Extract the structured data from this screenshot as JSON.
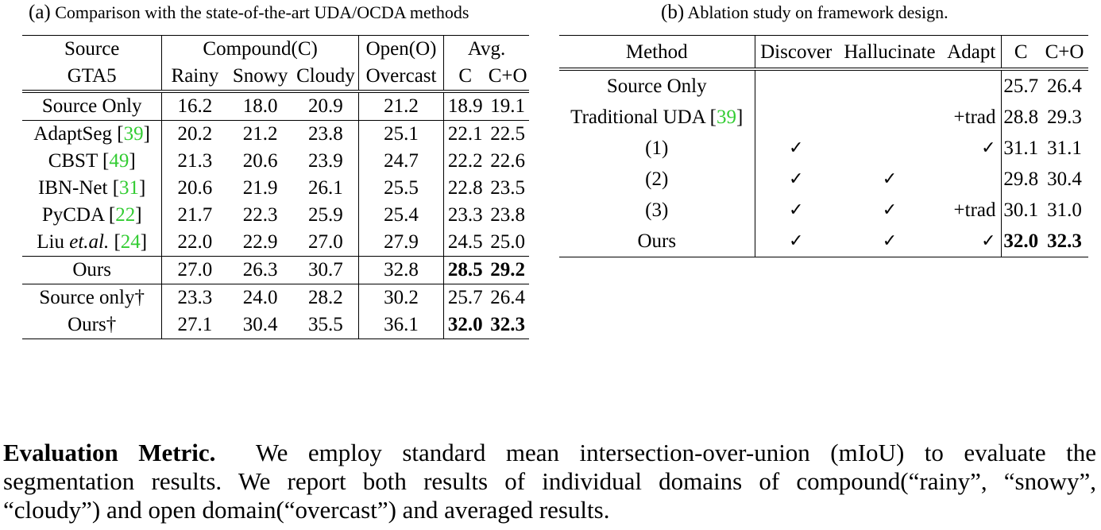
{
  "table_a": {
    "caption_label": "(a)",
    "caption_text": "Comparison with the state-of-the-art UDA/OCDA methods",
    "header": {
      "source": "Source",
      "dataset": "GTA5",
      "compound": "Compound(C)",
      "open": "Open(O)",
      "avg": "Avg.",
      "rainy": "Rainy",
      "snowy": "Snowy",
      "cloudy": "Cloudy",
      "overcast": "Overcast",
      "c": "C",
      "co": "C+O"
    },
    "rows": [
      {
        "method": "Source Only",
        "cite": "",
        "rainy": "16.2",
        "snowy": "18.0",
        "cloudy": "20.9",
        "overcast": "21.2",
        "c": "18.9",
        "co": "19.1"
      },
      {
        "method": "AdaptSeg",
        "cite": "39",
        "rainy": "20.2",
        "snowy": "21.2",
        "cloudy": "23.8",
        "overcast": "25.1",
        "c": "22.1",
        "co": "22.5"
      },
      {
        "method": "CBST",
        "cite": "49",
        "rainy": "21.3",
        "snowy": "20.6",
        "cloudy": "23.9",
        "overcast": "24.7",
        "c": "22.2",
        "co": "22.6"
      },
      {
        "method": "IBN-Net",
        "cite": "31",
        "rainy": "20.6",
        "snowy": "21.9",
        "cloudy": "26.1",
        "overcast": "25.5",
        "c": "22.8",
        "co": "23.5"
      },
      {
        "method": "PyCDA",
        "cite": "22",
        "rainy": "21.7",
        "snowy": "22.3",
        "cloudy": "25.9",
        "overcast": "25.4",
        "c": "23.3",
        "co": "23.8"
      },
      {
        "method_prefix": "Liu",
        "method_italic": "et.al.",
        "cite": "24",
        "rainy": "22.0",
        "snowy": "22.9",
        "cloudy": "27.0",
        "overcast": "27.9",
        "c": "24.5",
        "co": "25.0"
      },
      {
        "method": "Ours",
        "cite": "",
        "rainy": "27.0",
        "snowy": "26.3",
        "cloudy": "30.7",
        "overcast": "32.8",
        "c": "28.5",
        "co": "29.2"
      },
      {
        "method": "Source only†",
        "cite": "",
        "rainy": "23.3",
        "snowy": "24.0",
        "cloudy": "28.2",
        "overcast": "30.2",
        "c": "25.7",
        "co": "26.4"
      },
      {
        "method": "Ours†",
        "cite": "",
        "rainy": "27.1",
        "snowy": "30.4",
        "cloudy": "35.5",
        "overcast": "36.1",
        "c": "32.0",
        "co": "32.3"
      }
    ]
  },
  "table_b": {
    "caption_label": "(b)",
    "caption_text": "Ablation study on framework design.",
    "header": {
      "method": "Method",
      "discover": "Discover",
      "hallucinate": "Hallucinate",
      "adapt": "Adapt",
      "c": "C",
      "co": "C+O"
    },
    "check_glyph": "✓",
    "rows": [
      {
        "method": "Source Only",
        "cite": "",
        "discover": "",
        "hallucinate": "",
        "adapt": "",
        "c": "25.7",
        "co": "26.4"
      },
      {
        "method": "Traditional UDA",
        "cite": "39",
        "discover": "",
        "hallucinate": "",
        "adapt": "+trad",
        "c": "28.8",
        "co": "29.3"
      },
      {
        "method": "(1)",
        "cite": "",
        "discover": "✓",
        "hallucinate": "",
        "adapt": "✓",
        "c": "31.1",
        "co": "31.1"
      },
      {
        "method": "(2)",
        "cite": "",
        "discover": "✓",
        "hallucinate": "✓",
        "adapt": "",
        "c": "29.8",
        "co": "30.4"
      },
      {
        "method": "(3)",
        "cite": "",
        "discover": "✓",
        "hallucinate": "✓",
        "adapt": "+trad",
        "c": "30.1",
        "co": "31.0"
      },
      {
        "method": "Ours",
        "cite": "",
        "discover": "✓",
        "hallucinate": "✓",
        "adapt": "✓",
        "c": "32.0",
        "co": "32.3"
      }
    ]
  },
  "paragraph": {
    "title": "Evaluation Metric.",
    "line1": "We employ standard mean intersection-over-union (mIoU) to evaluate the",
    "line2": "segmentation results. We report both results of individual domains of compound(“rainy”, “snowy”,",
    "line3": "“cloudy”) and open domain(“overcast”) and averaged results."
  }
}
